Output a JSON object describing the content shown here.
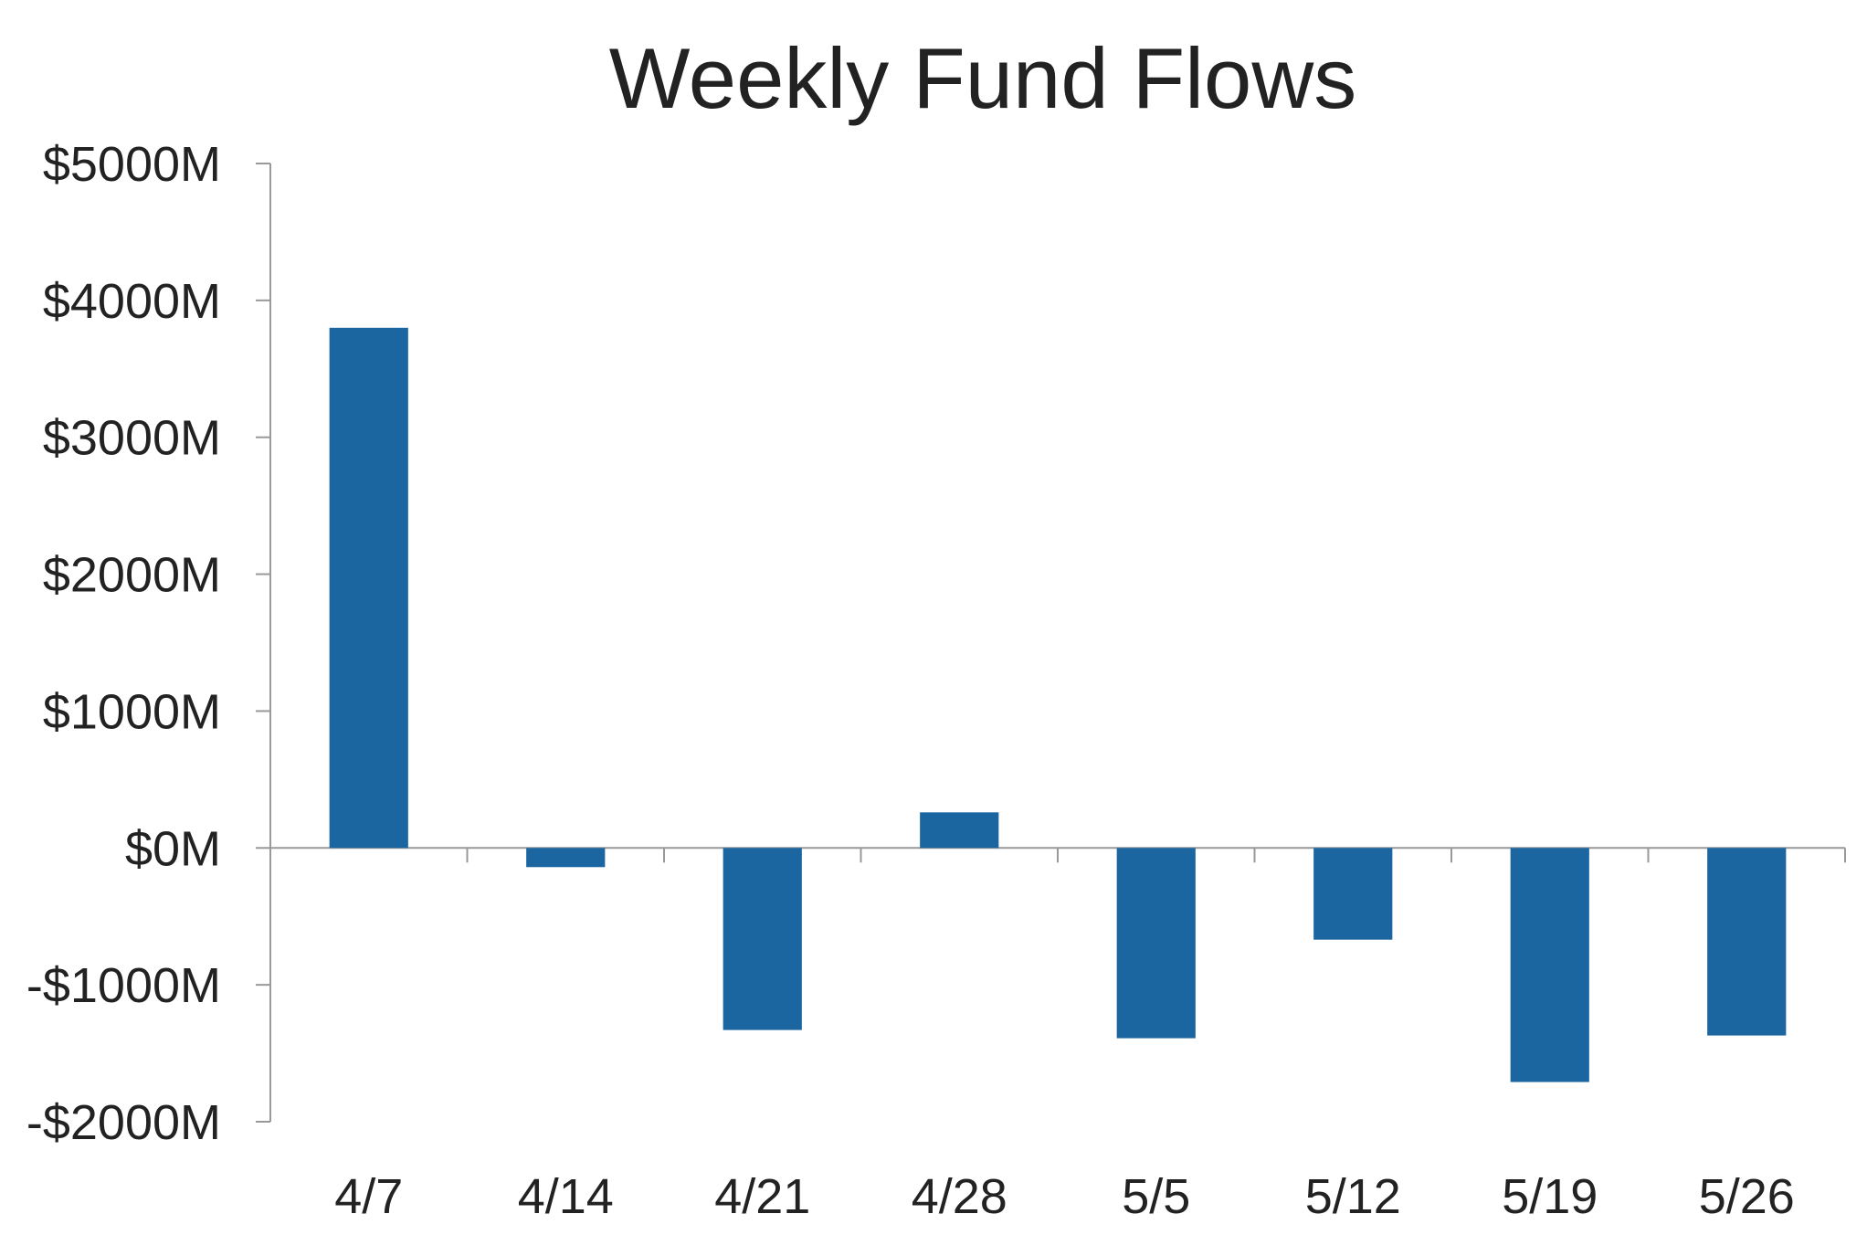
{
  "chart_data": {
    "type": "bar",
    "title": "Weekly Fund Flows",
    "xlabel": "",
    "ylabel": "",
    "categories": [
      "4/7",
      "4/14",
      "4/21",
      "4/28",
      "5/5",
      "5/12",
      "5/19",
      "5/26"
    ],
    "values": [
      3800,
      -140,
      -1330,
      260,
      -1390,
      -670,
      -1710,
      -1370
    ],
    "unit": "M",
    "ylim": [
      -2000,
      5000
    ],
    "yticks": [
      5000,
      4000,
      3000,
      2000,
      1000,
      0,
      -1000,
      -2000
    ],
    "ytick_labels": [
      "$5000M",
      "$4000M",
      "$3000M",
      "$2000M",
      "$1000M",
      "$0M",
      "-$1000M",
      "-$2000M"
    ],
    "grid": false,
    "legend": "none",
    "bar_color": "#1b65a0",
    "axis_color": "#999999",
    "text_color": "#222222"
  }
}
